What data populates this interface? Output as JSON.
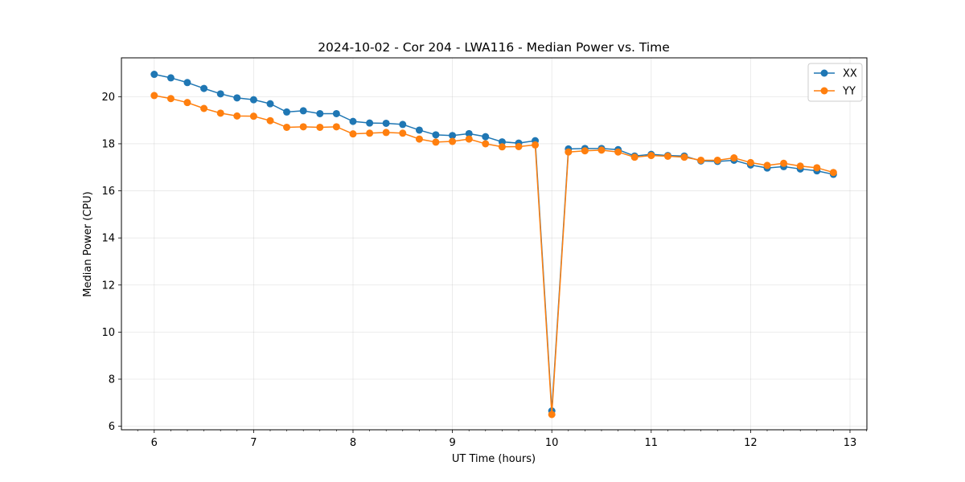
{
  "chart_data": {
    "type": "line",
    "title": "2024-10-02 - Cor 204 - LWA116 - Median Power vs. Time",
    "xlabel": "UT Time (hours)",
    "ylabel": "Median Power (CPU)",
    "xlim": [
      5.67,
      13.17
    ],
    "ylim": [
      5.85,
      21.65
    ],
    "x_ticks": [
      6,
      7,
      8,
      9,
      10,
      11,
      12,
      13
    ],
    "x_tick_labels": [
      "6",
      "7",
      "8",
      "9",
      "10",
      "11",
      "12",
      "13"
    ],
    "y_ticks": [
      6,
      8,
      10,
      12,
      14,
      16,
      18,
      20
    ],
    "y_tick_labels": [
      "6",
      "8",
      "10",
      "12",
      "14",
      "16",
      "18",
      "20"
    ],
    "grid": true,
    "legend_position": "top-right",
    "x": [
      6.0,
      6.167,
      6.333,
      6.5,
      6.667,
      6.833,
      7.0,
      7.167,
      7.333,
      7.5,
      7.667,
      7.833,
      8.0,
      8.167,
      8.333,
      8.5,
      8.667,
      8.833,
      9.0,
      9.167,
      9.333,
      9.5,
      9.667,
      9.833,
      10.0,
      10.167,
      10.333,
      10.5,
      10.667,
      10.833,
      11.0,
      11.167,
      11.333,
      11.5,
      11.667,
      11.833,
      12.0,
      12.167,
      12.333,
      12.5,
      12.667,
      12.833
    ],
    "series": [
      {
        "name": "XX",
        "color": "#1f77b4",
        "values": [
          20.95,
          20.8,
          20.6,
          20.35,
          20.12,
          19.95,
          19.87,
          19.7,
          19.35,
          19.4,
          19.28,
          19.28,
          18.95,
          18.88,
          18.87,
          18.82,
          18.58,
          18.38,
          18.35,
          18.43,
          18.3,
          18.08,
          18.03,
          18.13,
          6.65,
          17.78,
          17.8,
          17.8,
          17.75,
          17.48,
          17.55,
          17.5,
          17.48,
          17.27,
          17.25,
          17.3,
          17.1,
          16.97,
          17.03,
          16.93,
          16.85,
          16.7
        ]
      },
      {
        "name": "YY",
        "color": "#ff7f0e",
        "values": [
          20.05,
          19.92,
          19.75,
          19.5,
          19.3,
          19.18,
          19.17,
          18.98,
          18.7,
          18.72,
          18.7,
          18.72,
          18.42,
          18.45,
          18.48,
          18.45,
          18.2,
          18.07,
          18.1,
          18.2,
          18.0,
          17.87,
          17.88,
          17.95,
          6.5,
          17.65,
          17.7,
          17.73,
          17.65,
          17.43,
          17.5,
          17.47,
          17.43,
          17.3,
          17.3,
          17.4,
          17.2,
          17.08,
          17.17,
          17.05,
          16.98,
          16.78
        ]
      }
    ]
  }
}
